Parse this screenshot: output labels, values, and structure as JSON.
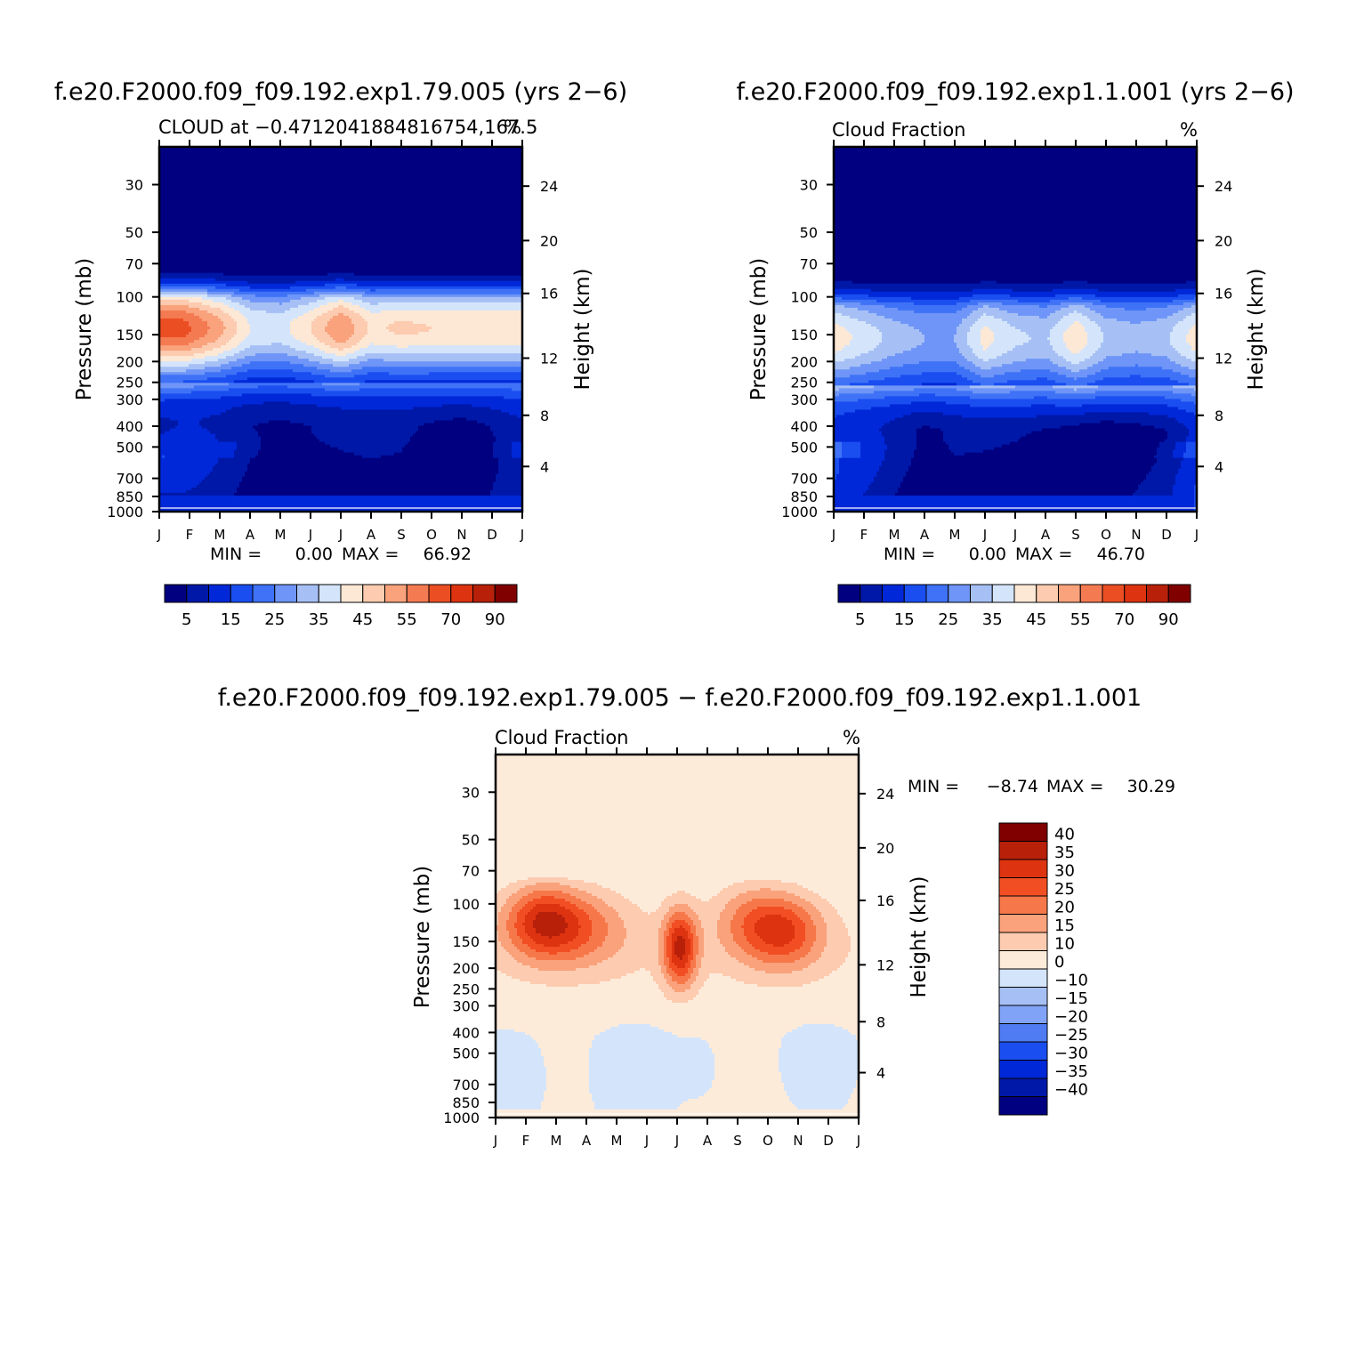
{
  "chart_data": [
    {
      "type": "heatmap",
      "title": "f.e20.F2000.f09_f09.192.exp1.79.005 (yrs 2−6)",
      "subtitle_left": "CLOUD at −0.4712041884816754,167.5",
      "subtitle_right": "%",
      "ylabel": "Pressure (mb)",
      "ylabel_right": "Height (km)",
      "x_ticks": [
        "J",
        "F",
        "M",
        "A",
        "M",
        "J",
        "J",
        "A",
        "S",
        "O",
        "N",
        "D",
        "J"
      ],
      "y_ticks": [
        30,
        50,
        70,
        100,
        150,
        200,
        250,
        300,
        400,
        500,
        700,
        850,
        1000
      ],
      "y_ticks_right": [
        24,
        20,
        16,
        12,
        8,
        4
      ],
      "stats": {
        "min_label": "MIN =",
        "min": "0.00",
        "max_label": "MAX =",
        "max": "66.92"
      },
      "colorbar": {
        "orientation": "horizontal",
        "labels": [
          "5",
          "15",
          "25",
          "35",
          "45",
          "55",
          "70",
          "90"
        ],
        "colors": [
          "#000080",
          "#0018a8",
          "#0028d8",
          "#1a4ef0",
          "#3f72f6",
          "#6e95f7",
          "#a6c0f6",
          "#d4e5fb",
          "#fde8d5",
          "#fccbb0",
          "#f9a27c",
          "#f47a52",
          "#ec4e24",
          "#dd3310",
          "#b8200a",
          "#800000"
        ]
      },
      "fields": {
        "anchors": {
          "jet": [
            [
              0,
              0
            ],
            [
              12,
              0
            ]
          ],
          "peak": [
            [
              0.8,
              62
            ],
            [
              2,
              52
            ],
            [
              3,
              40
            ],
            [
              4,
              38
            ],
            [
              5,
              45
            ],
            [
              6,
              55
            ],
            [
              7,
              44
            ],
            [
              8,
              46
            ],
            [
              9,
              45
            ],
            [
              10,
              45
            ],
            [
              11,
              45
            ],
            [
              12,
              45
            ]
          ],
          "midcold": [
            [
              0,
              8
            ],
            [
              1,
              7
            ],
            [
              2,
              6
            ],
            [
              3,
              2
            ],
            [
              4,
              0
            ],
            [
              5,
              1
            ],
            [
              6,
              3
            ],
            [
              7,
              4
            ],
            [
              8,
              4
            ],
            [
              9,
              1
            ],
            [
              10,
              0
            ],
            [
              11,
              4
            ],
            [
              12,
              8
            ]
          ],
          "midwarm": [
            [
              0,
              14
            ],
            [
              1,
              18
            ],
            [
              2,
              14
            ],
            [
              3,
              9
            ],
            [
              4,
              8
            ],
            [
              5,
              9
            ],
            [
              6,
              9
            ],
            [
              7,
              10
            ],
            [
              8,
              10
            ],
            [
              9,
              9
            ],
            [
              10,
              8
            ],
            [
              11,
              10
            ],
            [
              12,
              14
            ]
          ]
        }
      }
    },
    {
      "type": "heatmap",
      "title": "f.e20.F2000.f09_f09.192.exp1.1.001 (yrs 2−6)",
      "subtitle_left": "Cloud Fraction",
      "subtitle_right": "%",
      "ylabel": "Pressure (mb)",
      "ylabel_right": "Height (km)",
      "x_ticks": [
        "J",
        "F",
        "M",
        "A",
        "M",
        "J",
        "J",
        "A",
        "S",
        "O",
        "N",
        "D",
        "J"
      ],
      "y_ticks": [
        30,
        50,
        70,
        100,
        150,
        200,
        250,
        300,
        400,
        500,
        700,
        850,
        1000
      ],
      "y_ticks_right": [
        24,
        20,
        16,
        12,
        8,
        4
      ],
      "stats": {
        "min_label": "MIN =",
        "min": "0.00",
        "max_label": "MAX =",
        "max": "46.70"
      },
      "colorbar": {
        "orientation": "horizontal",
        "labels": [
          "5",
          "15",
          "25",
          "35",
          "45",
          "55",
          "70",
          "90"
        ],
        "colors": [
          "#000080",
          "#0018a8",
          "#0028d8",
          "#1a4ef0",
          "#3f72f6",
          "#6e95f7",
          "#a6c0f6",
          "#d4e5fb",
          "#fde8d5",
          "#fccbb0",
          "#f9a27c",
          "#f47a52",
          "#ec4e24",
          "#dd3310",
          "#b8200a",
          "#800000"
        ]
      },
      "fields": {
        "anchors": {
          "peak": [
            [
              0,
              43
            ],
            [
              1,
              38
            ],
            [
              2,
              33
            ],
            [
              3,
              30
            ],
            [
              4,
              30
            ],
            [
              5,
              42
            ],
            [
              6,
              36
            ],
            [
              7,
              34
            ],
            [
              8,
              44
            ],
            [
              9,
              34
            ],
            [
              10,
              32
            ],
            [
              11,
              34
            ],
            [
              12,
              43
            ]
          ],
          "midcold": [
            [
              0,
              12
            ],
            [
              1,
              8
            ],
            [
              2,
              4
            ],
            [
              3,
              0
            ],
            [
              4,
              3
            ],
            [
              5,
              3
            ],
            [
              6,
              3
            ],
            [
              7,
              2
            ],
            [
              8,
              1
            ],
            [
              9,
              0
            ],
            [
              10,
              2
            ],
            [
              11,
              5
            ],
            [
              12,
              12
            ]
          ],
          "midwarm": [
            [
              0,
              18
            ],
            [
              1,
              16
            ],
            [
              2,
              12
            ],
            [
              3,
              6
            ],
            [
              4,
              8
            ],
            [
              5,
              9
            ],
            [
              6,
              9
            ],
            [
              7,
              9
            ],
            [
              8,
              8
            ],
            [
              9,
              7
            ],
            [
              10,
              9
            ],
            [
              11,
              12
            ],
            [
              12,
              18
            ]
          ]
        }
      }
    },
    {
      "type": "heatmap",
      "title": "f.e20.F2000.f09_f09.192.exp1.79.005 − f.e20.F2000.f09_f09.192.exp1.1.001",
      "subtitle_left": "Cloud Fraction",
      "subtitle_right": "%",
      "ylabel": "Pressure (mb)",
      "ylabel_right": "Height (km)",
      "x_ticks": [
        "J",
        "F",
        "M",
        "A",
        "M",
        "J",
        "J",
        "A",
        "S",
        "O",
        "N",
        "D",
        "J"
      ],
      "y_ticks": [
        30,
        50,
        70,
        100,
        150,
        200,
        250,
        300,
        400,
        500,
        700,
        850,
        1000
      ],
      "y_ticks_right": [
        24,
        20,
        16,
        12,
        8,
        4
      ],
      "stats": {
        "min_label": "MIN =",
        "min": "−8.74",
        "max_label": "MAX =",
        "max": "30.29"
      },
      "colorbar": {
        "orientation": "vertical",
        "labels": [
          "40",
          "35",
          "30",
          "25",
          "20",
          "15",
          "10",
          "0",
          "−10",
          "−15",
          "−20",
          "−25",
          "−30",
          "−35",
          "−40"
        ],
        "colors": [
          "#800000",
          "#b8200a",
          "#dd3310",
          "#f24e24",
          "#f6784a",
          "#faa27c",
          "#fccbb0",
          "#fdebda",
          "#d4e5fb",
          "#a6c0f6",
          "#80a3f7",
          "#4f7cf3",
          "#1a4ef0",
          "#0028d8",
          "#0018a8",
          "#000080"
        ]
      }
    }
  ]
}
